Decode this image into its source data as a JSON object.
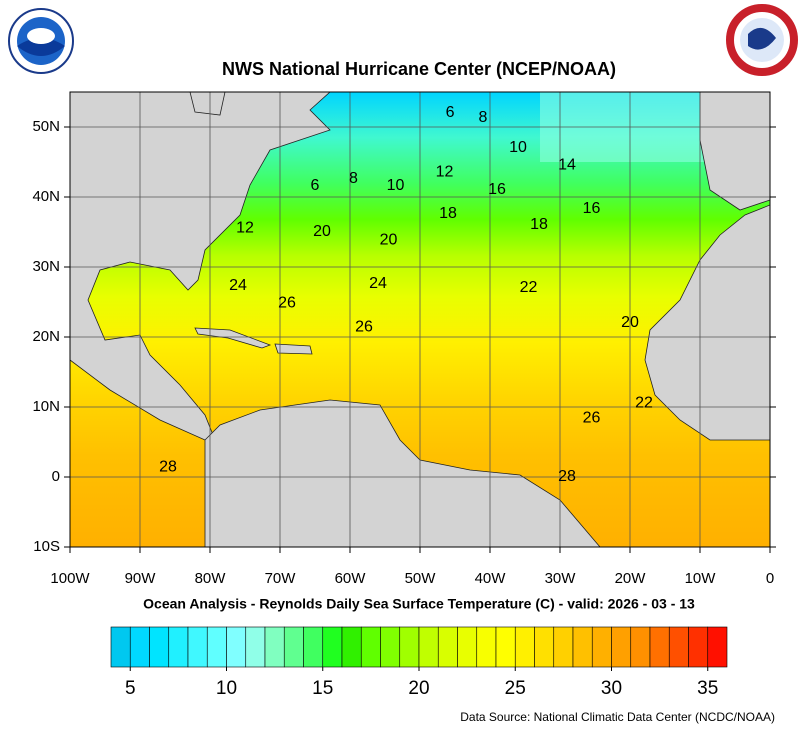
{
  "title": "NWS National Hurricane Center (NCEP/NOAA)",
  "subtitle": "Ocean Analysis - Reynolds Daily Sea Surface Temperature (C) - valid: 2026 - 03 - 13",
  "source": "Data Source: National Climatic Data Center (NCDC/NOAA)",
  "map": {
    "lonlim": [
      -100,
      0
    ],
    "latlim": [
      -10,
      55
    ],
    "lon_ticks": [
      {
        "value": -100,
        "label": "100W"
      },
      {
        "value": -90,
        "label": "90W"
      },
      {
        "value": -80,
        "label": "80W"
      },
      {
        "value": -70,
        "label": "70W"
      },
      {
        "value": -60,
        "label": "60W"
      },
      {
        "value": -50,
        "label": "50W"
      },
      {
        "value": -40,
        "label": "40W"
      },
      {
        "value": -30,
        "label": "30W"
      },
      {
        "value": -20,
        "label": "20W"
      },
      {
        "value": -10,
        "label": "10W"
      },
      0
    ],
    "lat_ticks": [
      {
        "value": 50,
        "label": "50N"
      },
      {
        "value": 40,
        "label": "40N"
      },
      {
        "value": 30,
        "label": "30N"
      },
      {
        "value": 20,
        "label": "20N"
      },
      {
        "value": 10,
        "label": "10N"
      },
      0,
      {
        "value": -10,
        "label": "10S"
      }
    ],
    "contour_labels": [
      {
        "value": 6,
        "lon": -45.7,
        "lat": 52
      },
      {
        "value": 8,
        "lon": -41,
        "lat": 51.3
      },
      {
        "value": 10,
        "lon": -36,
        "lat": 47
      },
      {
        "value": 14,
        "lon": -29,
        "lat": 44.5
      },
      {
        "value": 16,
        "lon": -39,
        "lat": 41
      },
      {
        "value": 12,
        "lon": -46.5,
        "lat": 43.5
      },
      {
        "value": 10,
        "lon": -53.5,
        "lat": 41.6
      },
      {
        "value": 8,
        "lon": -59.5,
        "lat": 42.6
      },
      {
        "value": 6,
        "lon": -65,
        "lat": 41.6
      },
      {
        "value": 18,
        "lon": -46,
        "lat": 37.6
      },
      {
        "value": 18,
        "lon": -33,
        "lat": 36
      },
      {
        "value": 16,
        "lon": -25.5,
        "lat": 38.3
      },
      {
        "value": 12,
        "lon": -75,
        "lat": 35.5
      },
      {
        "value": 20,
        "lon": -64,
        "lat": 35
      },
      {
        "value": 20,
        "lon": -54.5,
        "lat": 33.8
      },
      {
        "value": 24,
        "lon": -76,
        "lat": 27.3
      },
      {
        "value": 24,
        "lon": -56,
        "lat": 27.6
      },
      {
        "value": 22,
        "lon": -34.5,
        "lat": 27
      },
      {
        "value": 26,
        "lon": -69,
        "lat": 24.8
      },
      {
        "value": 26,
        "lon": -58,
        "lat": 21.4
      },
      {
        "value": 20,
        "lon": -20,
        "lat": 22
      },
      {
        "value": 22,
        "lon": -18,
        "lat": 10.5
      },
      {
        "value": 26,
        "lon": -25.5,
        "lat": 8.4
      },
      {
        "value": 28,
        "lon": -86,
        "lat": 1.4
      },
      {
        "value": 28,
        "lon": -29,
        "lat": 0
      }
    ]
  },
  "colorbar": {
    "lim": [
      4,
      36
    ],
    "ticks": [
      5,
      10,
      15,
      20,
      25,
      30,
      35
    ],
    "colors": [
      "#00c8f0",
      "#00d8ff",
      "#00e4ff",
      "#20f0ff",
      "#40f8ff",
      "#60ffff",
      "#80ffff",
      "#90ffe8",
      "#80ffc0",
      "#60ff90",
      "#40ff60",
      "#20ff20",
      "#30f000",
      "#60ff00",
      "#80ff00",
      "#a0ff00",
      "#c0ff00",
      "#d8ff00",
      "#e8ff00",
      "#f8ff00",
      "#ffff00",
      "#fff000",
      "#ffe000",
      "#ffd000",
      "#ffc000",
      "#ffb000",
      "#ffa000",
      "#ff9000",
      "#ff7000",
      "#ff5000",
      "#ff3000",
      "#ff1000"
    ]
  }
}
